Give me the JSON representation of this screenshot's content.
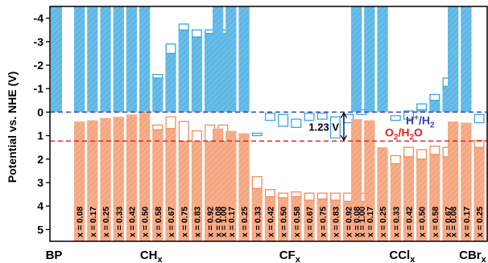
{
  "chart_data": {
    "type": "bar",
    "ylabel": "Potential vs. NHE (V)",
    "ylim": [
      5.5,
      -4.5
    ],
    "y_ticks": [
      -4,
      -3,
      -2,
      -1,
      0,
      1,
      2,
      3,
      4,
      5
    ],
    "y_tick_labels": [
      "-4",
      "-3",
      "-2",
      "-1",
      "0",
      "1",
      "2",
      "3",
      "4",
      "5"
    ],
    "value_meaning": "each bar spans from CBM (top, blue) to VBM (bottom, orange); open boxes mark a second level",
    "colors": {
      "cbm": "#5fb8e6",
      "vbm": "#f5a782",
      "box": "#ffffff",
      "box_stroke_blue": "#3aa4e0",
      "box_stroke_orange": "#f28c5a",
      "h2_line": "#3344aa",
      "o2_line": "#dd2222"
    },
    "reference_lines": [
      {
        "name": "H+/H2",
        "label_main": "H",
        "label_sup": "+",
        "label_mid": "/H",
        "label_sub": "2",
        "value": 0.0,
        "color": "#3344aa"
      },
      {
        "name": "O2/H2O",
        "label_main": "O",
        "label_sub": "2",
        "label_mid": "/H",
        "label_sub2": "2",
        "label_end": "O",
        "value": 1.23,
        "color": "#dd2222"
      }
    ],
    "gap_label": "1.23 V",
    "groups": [
      {
        "name": "BP",
        "name_main": "BP",
        "name_sub": "",
        "bars": [
          {
            "x": "",
            "cbm": -4.5,
            "vbm": 5.5
          }
        ]
      },
      {
        "name": "CHx",
        "name_main": "CH",
        "name_sub": "x",
        "bars": [
          {
            "x": "x = 0.08",
            "cbm": -4.5,
            "vbm": 0.4,
            "box_cbm": null,
            "box_vbm": null
          },
          {
            "x": "x = 0.17",
            "cbm": -4.5,
            "vbm": 0.35,
            "box_cbm": null,
            "box_vbm": null
          },
          {
            "x": "x = 0.25",
            "cbm": -4.5,
            "vbm": 0.25,
            "box_cbm": null,
            "box_vbm": null
          },
          {
            "x": "x = 0.33",
            "cbm": -4.5,
            "vbm": 0.2,
            "box_cbm": null,
            "box_vbm": null
          },
          {
            "x": "x = 0.42",
            "cbm": -4.5,
            "vbm": 0.1,
            "box_cbm": null,
            "box_vbm": null
          },
          {
            "x": "x = 0.50",
            "cbm": -4.5,
            "vbm": -0.05,
            "box_cbm": null,
            "box_vbm": null
          },
          {
            "x": "x = 0.58",
            "cbm": -1.45,
            "vbm": 0.75,
            "box_cbm": [
              -1.45,
              -1.6
            ],
            "box_vbm": [
              0.75,
              0.55
            ]
          },
          {
            "x": "x = 0.67",
            "cbm": -2.5,
            "vbm": 0.7,
            "box_cbm": [
              -2.5,
              -2.9
            ],
            "box_vbm": [
              0.7,
              0.2
            ]
          },
          {
            "x": "x = 0.75",
            "cbm": -3.5,
            "vbm": 1.25,
            "box_cbm": [
              -3.5,
              -3.75
            ],
            "box_vbm": [
              1.25,
              0.4
            ]
          },
          {
            "x": "x = 0.83",
            "cbm": -3.2,
            "vbm": 1.25,
            "box_cbm": [
              -3.2,
              -3.5
            ],
            "box_vbm": [
              1.25,
              0.8
            ]
          },
          {
            "x": "x = 0.92",
            "cbm": -3.35,
            "vbm": 1.25,
            "box_cbm": [
              -3.35,
              -3.5
            ],
            "box_vbm": [
              1.25,
              0.55
            ]
          },
          {
            "x": "x = 1.00",
            "cbm": -3.35,
            "vbm": 1.25,
            "box_cbm": [
              -3.35,
              -3.5
            ],
            "box_vbm": [
              1.25,
              0.55
            ]
          }
        ]
      },
      {
        "name": "CFx",
        "name_main": "CF",
        "name_sub": "x",
        "bars": [
          {
            "x": "x = 0.08",
            "cbm": -4.5,
            "vbm": 0.7,
            "box_cbm": null,
            "box_vbm": null
          },
          {
            "x": "x = 0.17",
            "cbm": -4.5,
            "vbm": 0.8,
            "box_cbm": null,
            "box_vbm": null
          },
          {
            "x": "x = 0.25",
            "cbm": -4.5,
            "vbm": 0.9,
            "box_cbm": null,
            "box_vbm": null
          },
          {
            "x": "x = 0.33",
            "cbm": 0.9,
            "vbm": 3.25,
            "box_cbm": [
              0.9,
              1.0
            ],
            "box_vbm": [
              3.25,
              2.75
            ]
          },
          {
            "x": "x = 0.42",
            "cbm": 0.05,
            "vbm": 3.6,
            "box_cbm": [
              0.05,
              0.35
            ],
            "box_vbm": [
              3.6,
              3.3
            ]
          },
          {
            "x": "x = 0.50",
            "cbm": 0.1,
            "vbm": 3.65,
            "box_cbm": [
              0.1,
              0.6
            ],
            "box_vbm": [
              3.65,
              3.45
            ]
          },
          {
            "x": "x = 0.58",
            "cbm": 0.3,
            "vbm": 3.6,
            "box_cbm": [
              0.3,
              0.65
            ],
            "box_vbm": [
              3.6,
              3.4
            ]
          },
          {
            "x": "x = 0.67",
            "cbm": 0.05,
            "vbm": 3.75,
            "box_cbm": [
              0.05,
              0.35
            ],
            "box_vbm": [
              3.75,
              3.45
            ]
          },
          {
            "x": "x = 0.75",
            "cbm": 0.05,
            "vbm": 3.7,
            "box_cbm": [
              0.05,
              0.3
            ],
            "box_vbm": [
              3.7,
              3.45
            ]
          },
          {
            "x": "x = 0.83",
            "cbm": 0.2,
            "vbm": 3.75,
            "box_cbm": [
              0.2,
              1.1
            ],
            "box_vbm": [
              3.75,
              3.45
            ]
          },
          {
            "x": "x = 0.92",
            "cbm": 0.1,
            "vbm": 3.8,
            "box_cbm": [
              0.1,
              0.45
            ],
            "box_vbm": [
              3.8,
              3.45
            ]
          },
          {
            "x": "x = 1.00",
            "cbm": -0.1,
            "vbm": 3.8,
            "box_cbm": [
              -0.1,
              0.1
            ],
            "box_vbm": [
              3.8,
              3.45
            ]
          }
        ]
      },
      {
        "name": "CClx",
        "name_main": "CCl",
        "name_sub": "x",
        "bars": [
          {
            "x": "x = 0.08",
            "cbm": -4.5,
            "vbm": 0.3,
            "box_cbm": null,
            "box_vbm": null
          },
          {
            "x": "x = 0.17",
            "cbm": -4.5,
            "vbm": 0.35,
            "box_cbm": null,
            "box_vbm": null
          },
          {
            "x": "x = 0.25",
            "cbm": -4.5,
            "vbm": 1.5,
            "box_cbm": null,
            "box_vbm": null
          },
          {
            "x": "x = 0.33",
            "cbm": 0.35,
            "vbm": 2.2,
            "box_cbm": [
              0.35,
              0.15
            ],
            "box_vbm": [
              2.2,
              1.85
            ]
          },
          {
            "x": "x = 0.42",
            "cbm": 0.3,
            "vbm": 1.9,
            "box_cbm": [
              0.3,
              -0.05
            ],
            "box_vbm": [
              1.9,
              1.5
            ]
          },
          {
            "x": "x = 0.50",
            "cbm": -0.1,
            "vbm": 2.0,
            "box_cbm": [
              -0.1,
              -0.35
            ],
            "box_vbm": [
              2.0,
              1.6
            ]
          },
          {
            "x": "x = 0.58",
            "cbm": -0.5,
            "vbm": 1.8,
            "box_cbm": [
              -0.5,
              -0.75
            ],
            "box_vbm": [
              1.8,
              1.45
            ]
          },
          {
            "x": "x = 0.67",
            "cbm": -1.1,
            "vbm": 1.9,
            "box_cbm": [
              -1.1,
              -1.45
            ],
            "box_vbm": [
              1.9,
              1.5
            ]
          }
        ]
      },
      {
        "name": "CBrx",
        "name_main": "CBr",
        "name_sub": "x",
        "bars": [
          {
            "x": "x = 0.08",
            "cbm": -4.5,
            "vbm": 0.4,
            "box_cbm": null,
            "box_vbm": null
          },
          {
            "x": "x = 0.17",
            "cbm": -4.5,
            "vbm": 0.45,
            "box_cbm": null,
            "box_vbm": null
          },
          {
            "x": "x = 0.25",
            "cbm": 0.45,
            "vbm": 1.5,
            "box_cbm": [
              0.45,
              0.1
            ],
            "box_vbm": [
              1.5,
              1.2
            ]
          },
          {
            "x": "x = 0.33",
            "cbm": 0.4,
            "vbm": 1.9,
            "box_cbm": [
              0.4,
              0.05
            ],
            "box_vbm": [
              1.9,
              1.6
            ]
          }
        ]
      }
    ]
  }
}
